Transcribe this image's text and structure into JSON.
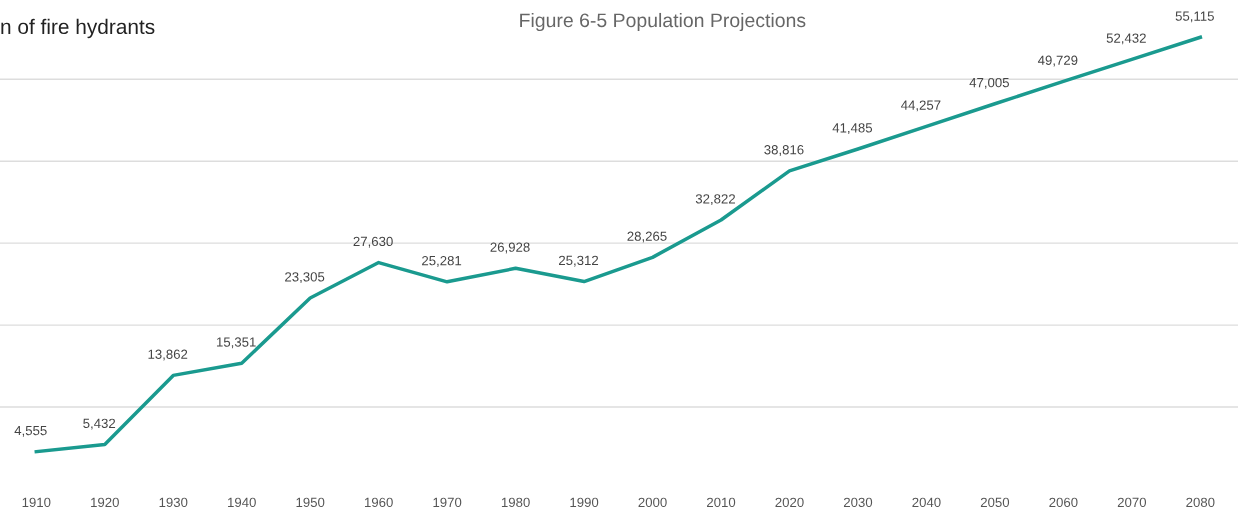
{
  "chart_data": {
    "type": "line",
    "title": "Figure 6-5 Population Projections",
    "annotations": [
      "n of fire hydrants"
    ],
    "categories": [
      "1910",
      "1920",
      "1930",
      "1940",
      "1950",
      "1960",
      "1970",
      "1980",
      "1990",
      "2000",
      "2010",
      "2020",
      "2030",
      "2040",
      "2050",
      "2060",
      "2070",
      "2080"
    ],
    "series": [
      {
        "color": "#1a9a8f",
        "values": [
          4555,
          5432,
          13862,
          15351,
          23305,
          27630,
          25281,
          26928,
          25312,
          28265,
          32822,
          38816,
          41485,
          44257,
          47005,
          49729,
          52432,
          55115
        ],
        "value_labels": [
          "4,555",
          "5,432",
          "13,862",
          "15,351",
          "23,305",
          "27,630",
          "25,281",
          "26,928",
          "25,312",
          "28,265",
          "32,822",
          "38,816",
          "41,485",
          "44,257",
          "47,005",
          "49,729",
          "52,432",
          "55,115"
        ]
      }
    ],
    "tick_labels": "x",
    "grid": "y",
    "legend": false,
    "marker": "none",
    "line_style": "solid"
  }
}
